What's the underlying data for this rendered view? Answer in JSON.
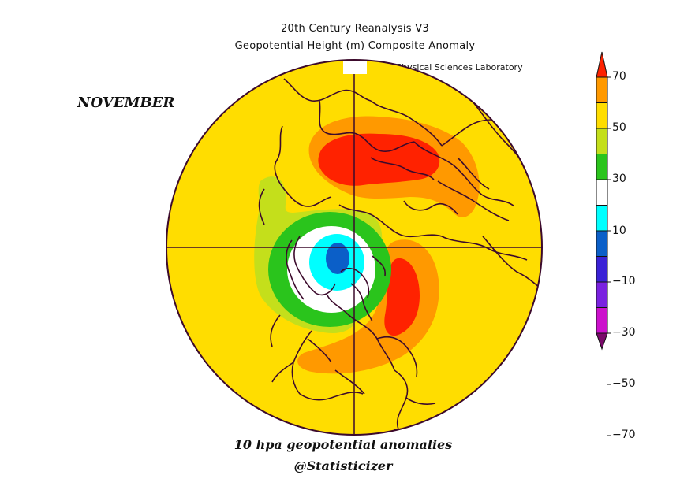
{
  "header": {
    "line1": "20th Century Reanalysis V3",
    "line2": "Geopotential Height (m) Composite Anomaly",
    "credit": "NOAA Physical Sciences Laboratory"
  },
  "month": "NOVEMBER",
  "caption": {
    "line1": "10 hpa geopotential anomalies",
    "line2": "@Statisticizer"
  },
  "map": {
    "projection": "north polar stereographic",
    "background_anomaly_color": "#ffdd00",
    "features": [
      {
        "name": "positive-anomaly-eurasia",
        "level": "50-70",
        "color": "#ff2200"
      },
      {
        "name": "positive-anomaly-east-north-america",
        "level": "50-70",
        "color": "#ff2200"
      },
      {
        "name": "negative-anomaly-greenland-canada",
        "level": "-30 to -10",
        "color": "#0b5fc8"
      }
    ]
  },
  "colorbar": {
    "labels": [
      "70",
      "50",
      "30",
      "10",
      "−10",
      "−30",
      "−50",
      "−70"
    ],
    "colors": [
      "#ff2200",
      "#ff9900",
      "#ffdd00",
      "#c4df1b",
      "#2ac41c",
      "#ffffff",
      "#00ffff",
      "#0b5fc8",
      "#3a22d6",
      "#7a22e0",
      "#cc11cc",
      "#7a0a6a"
    ]
  }
}
